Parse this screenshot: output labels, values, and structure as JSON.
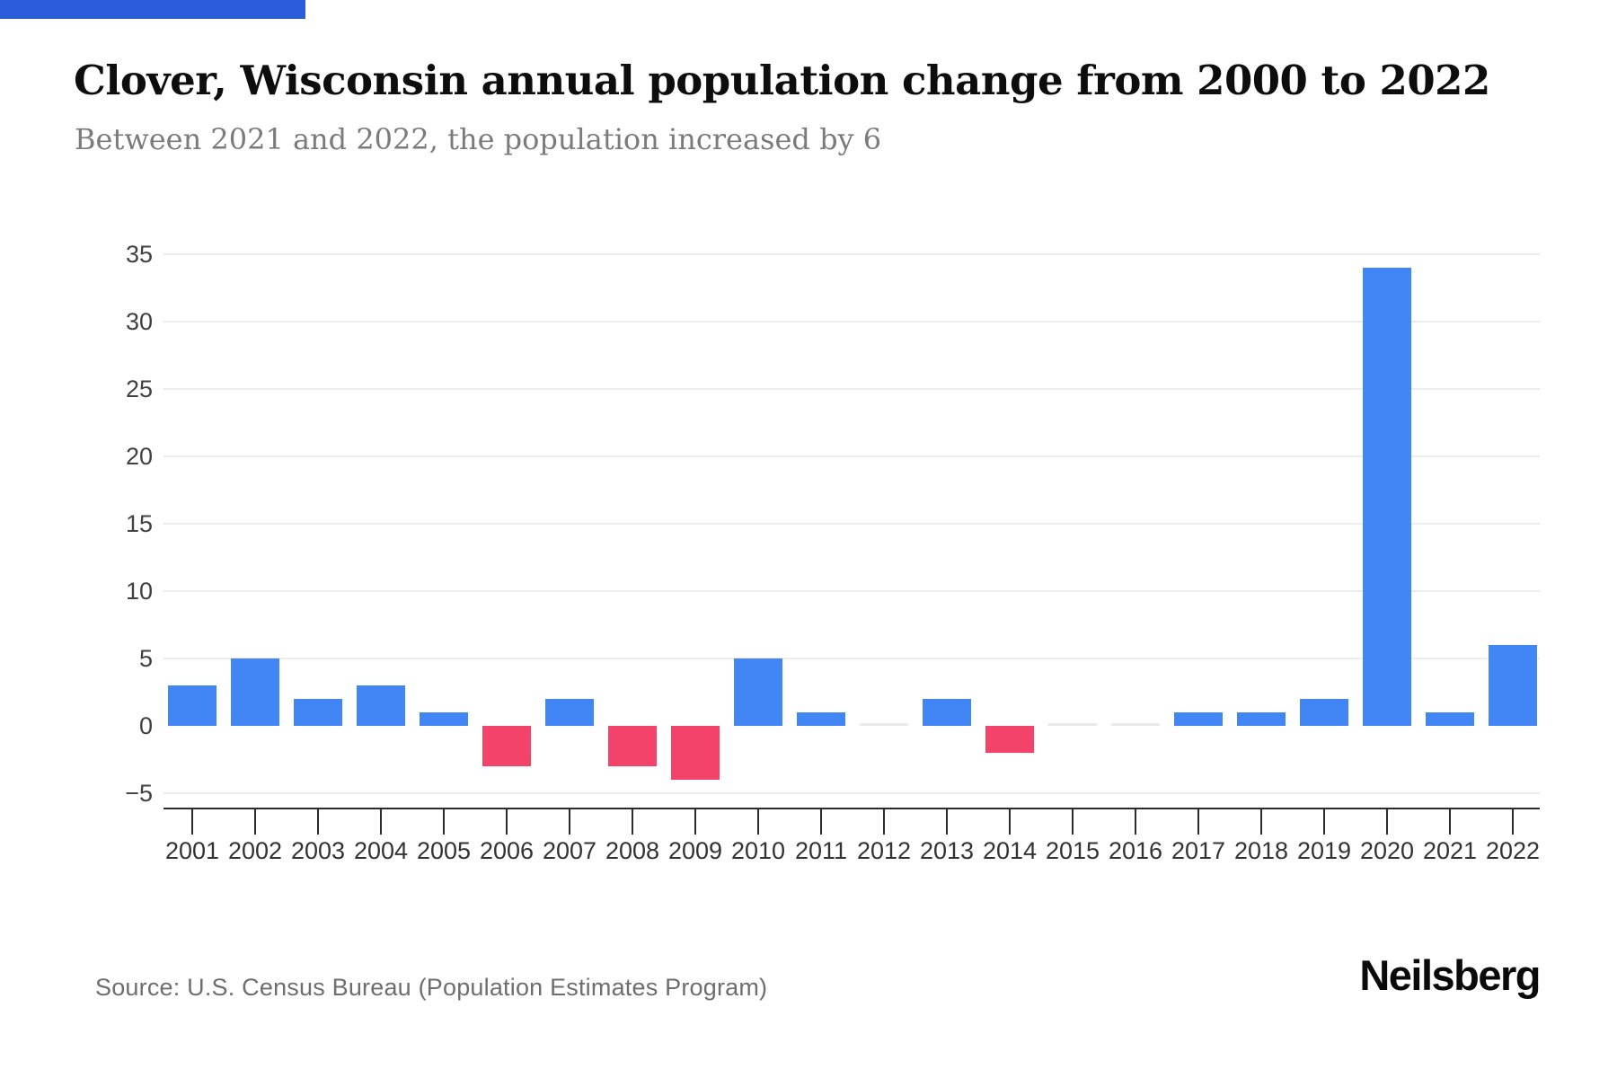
{
  "page": {
    "title": "Clover, Wisconsin annual population change from 2000 to 2022",
    "subtitle": "Between 2021 and 2022, the population increased by 6",
    "source": "Source: U.S. Census Bureau (Population Estimates Program)",
    "brand": "Neilsberg",
    "accent_color": "#2A5CDC"
  },
  "chart_data": {
    "type": "bar",
    "title": "Clover, Wisconsin annual population change from 2000 to 2022",
    "subtitle": "Between 2021 and 2022, the population increased by 6",
    "series_label": "Annual population change",
    "categories": [
      "2001",
      "2002",
      "2003",
      "2004",
      "2005",
      "2006",
      "2007",
      "2008",
      "2009",
      "2010",
      "2011",
      "2012",
      "2013",
      "2014",
      "2015",
      "2016",
      "2017",
      "2018",
      "2019",
      "2020",
      "2021",
      "2022"
    ],
    "values": [
      3,
      5,
      2,
      3,
      1,
      -3,
      2,
      -3,
      -4,
      5,
      1,
      0,
      2,
      -2,
      0,
      0,
      1,
      1,
      2,
      34,
      1,
      6
    ],
    "xlabel": "",
    "ylabel": "",
    "yticks": [
      35,
      30,
      25,
      20,
      15,
      10,
      5,
      0,
      -5
    ],
    "ylim": [
      -5,
      35
    ],
    "grid": "horizontal-no-zero-line",
    "legend": "none",
    "colors": {
      "positive": "#4285F4",
      "negative": "#F4436B",
      "zero": "#EAEAEA"
    }
  }
}
